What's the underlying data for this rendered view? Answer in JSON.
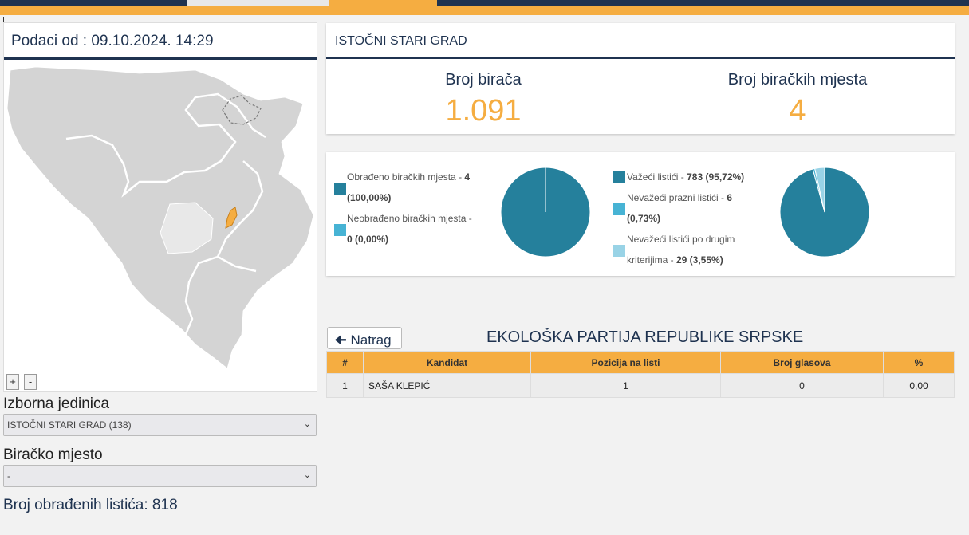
{
  "header": {
    "data_timestamp": "Podaci od : 09.10.2024. 14:29"
  },
  "map": {
    "zoom_in": "+",
    "zoom_out": "-"
  },
  "filters": {
    "unit_label": "Izborna jedinica",
    "unit_value": "ISTOČNI STARI GRAD (138)",
    "place_label": "Biračko mjesto",
    "place_value": "-"
  },
  "processed_ballots": "Broj obrađenih listića: 818",
  "summary": {
    "title": "ISTOČNI STARI GRAD",
    "voters_label": "Broj birača",
    "voters_value": "1.091",
    "stations_label": "Broj biračkih mjesta",
    "stations_value": "4"
  },
  "stations_chart": {
    "legend": [
      {
        "label": "Obrađeno biračkih mjesta - ",
        "value": "4",
        "extra": "(100,00%)",
        "color": "#25809c"
      },
      {
        "label": "Neobrađeno biračkih mjesta - ",
        "value": "0 (0,00%)",
        "color": "#47b3d4"
      }
    ]
  },
  "ballots_chart": {
    "legend": [
      {
        "label": "Važeći listići - ",
        "value": "783 (95,72%)",
        "color": "#25809c"
      },
      {
        "label": "Nevažeći prazni listići - ",
        "value": "6",
        "extra": "(0,73%)",
        "color": "#47b3d4"
      },
      {
        "label": "Nevažeći listići po drugim",
        "label2": "kriterijima - ",
        "value": "29 (3,55%)",
        "color": "#99d3e6"
      }
    ]
  },
  "chart_data": [
    {
      "type": "pie",
      "categories": [
        "Obrađeno biračkih mjesta",
        "Neobrađeno biračkih mjesta"
      ],
      "values": [
        4,
        0
      ]
    },
    {
      "type": "pie",
      "categories": [
        "Važeći listići",
        "Nevažeći prazni listići",
        "Nevažeći listići po drugim kriterijima"
      ],
      "values": [
        783,
        6,
        29
      ]
    }
  ],
  "results": {
    "back_label": "Natrag",
    "party": "EKOLOŠKA PARTIJA REPUBLIKE SRPSKE",
    "headers": [
      "#",
      "Kandidat",
      "Pozicija na listi",
      "Broj glasova",
      "%"
    ],
    "rows": [
      [
        "1",
        "SAŠA KLEPIĆ",
        "1",
        "0",
        "0,00"
      ]
    ]
  },
  "colors": {
    "navy": "#1f3350",
    "orange": "#f5ad41",
    "teal": "#25809c"
  }
}
